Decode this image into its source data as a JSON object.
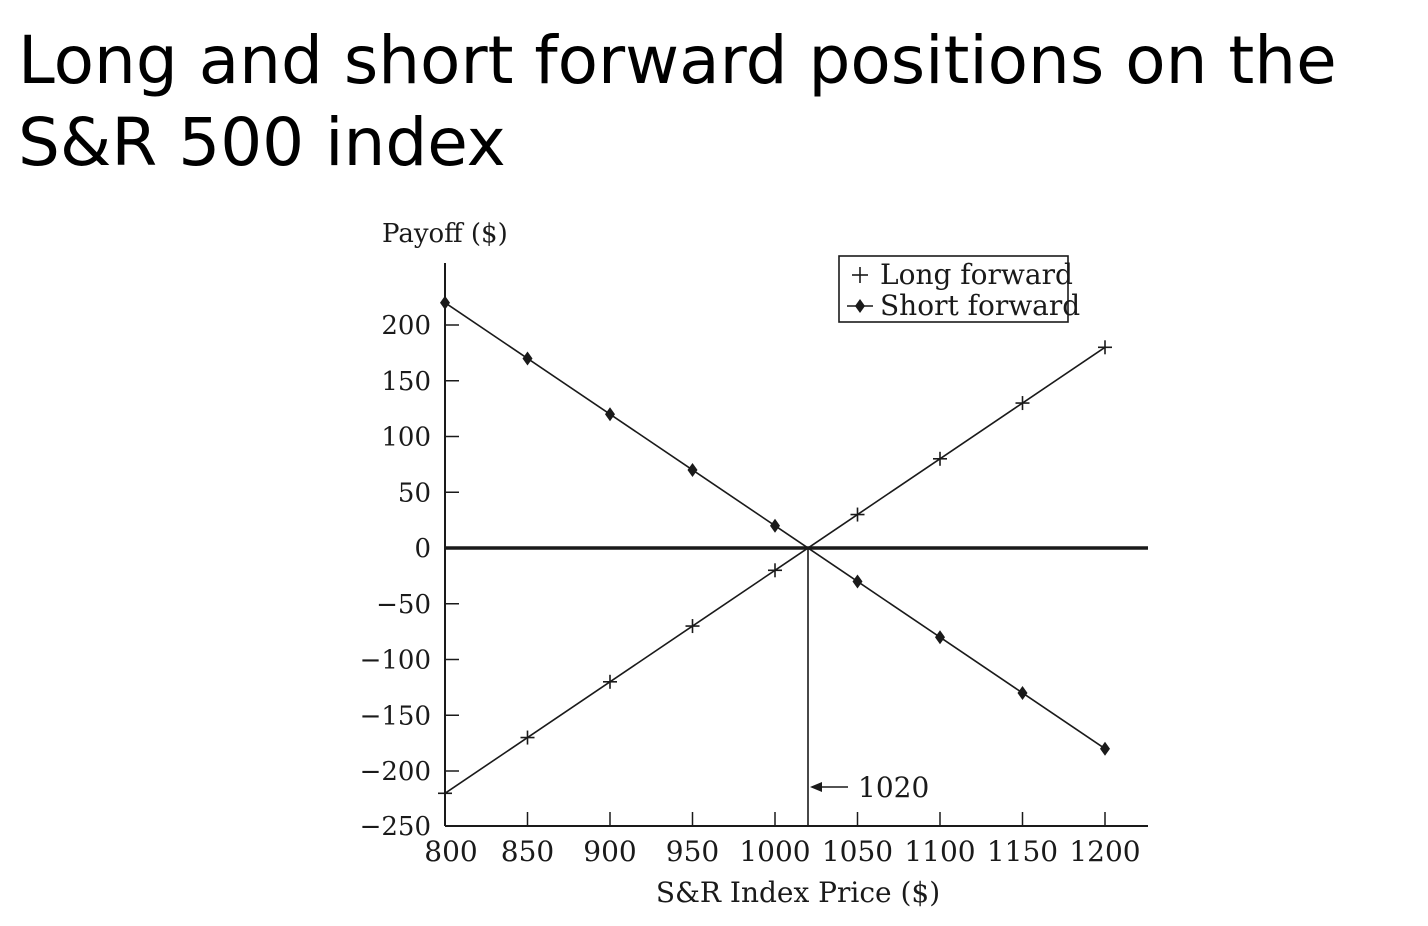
{
  "slide": {
    "title": "Long and short forward positions on the S&R 500 index"
  },
  "chart_data": {
    "type": "line",
    "xlabel": "S&R Index Price ($)",
    "ylabel": "Payoff ($)",
    "xlim": [
      800,
      1225
    ],
    "ylim": [
      -250,
      250
    ],
    "x_ticks": [
      800,
      850,
      900,
      950,
      1000,
      1050,
      1100,
      1150,
      1200
    ],
    "y_ticks": [
      200,
      150,
      100,
      50,
      0,
      -50,
      -100,
      -150,
      -200,
      -250
    ],
    "x": [
      800,
      850,
      900,
      950,
      1000,
      1050,
      1100,
      1150,
      1200
    ],
    "series": [
      {
        "name": "Long forward",
        "marker": "plus",
        "values": [
          -220,
          -170,
          -120,
          -70,
          -20,
          30,
          80,
          130,
          180
        ]
      },
      {
        "name": "Short forward",
        "marker": "diamond",
        "values": [
          220,
          170,
          120,
          70,
          20,
          -30,
          -80,
          -130,
          -180
        ]
      }
    ],
    "annotations": [
      {
        "label": "1020",
        "x": 1020,
        "y": -215
      }
    ],
    "breakeven_x": 1020,
    "legend_position": "top-right",
    "grid": false,
    "line_color": "#1a1a1a"
  }
}
